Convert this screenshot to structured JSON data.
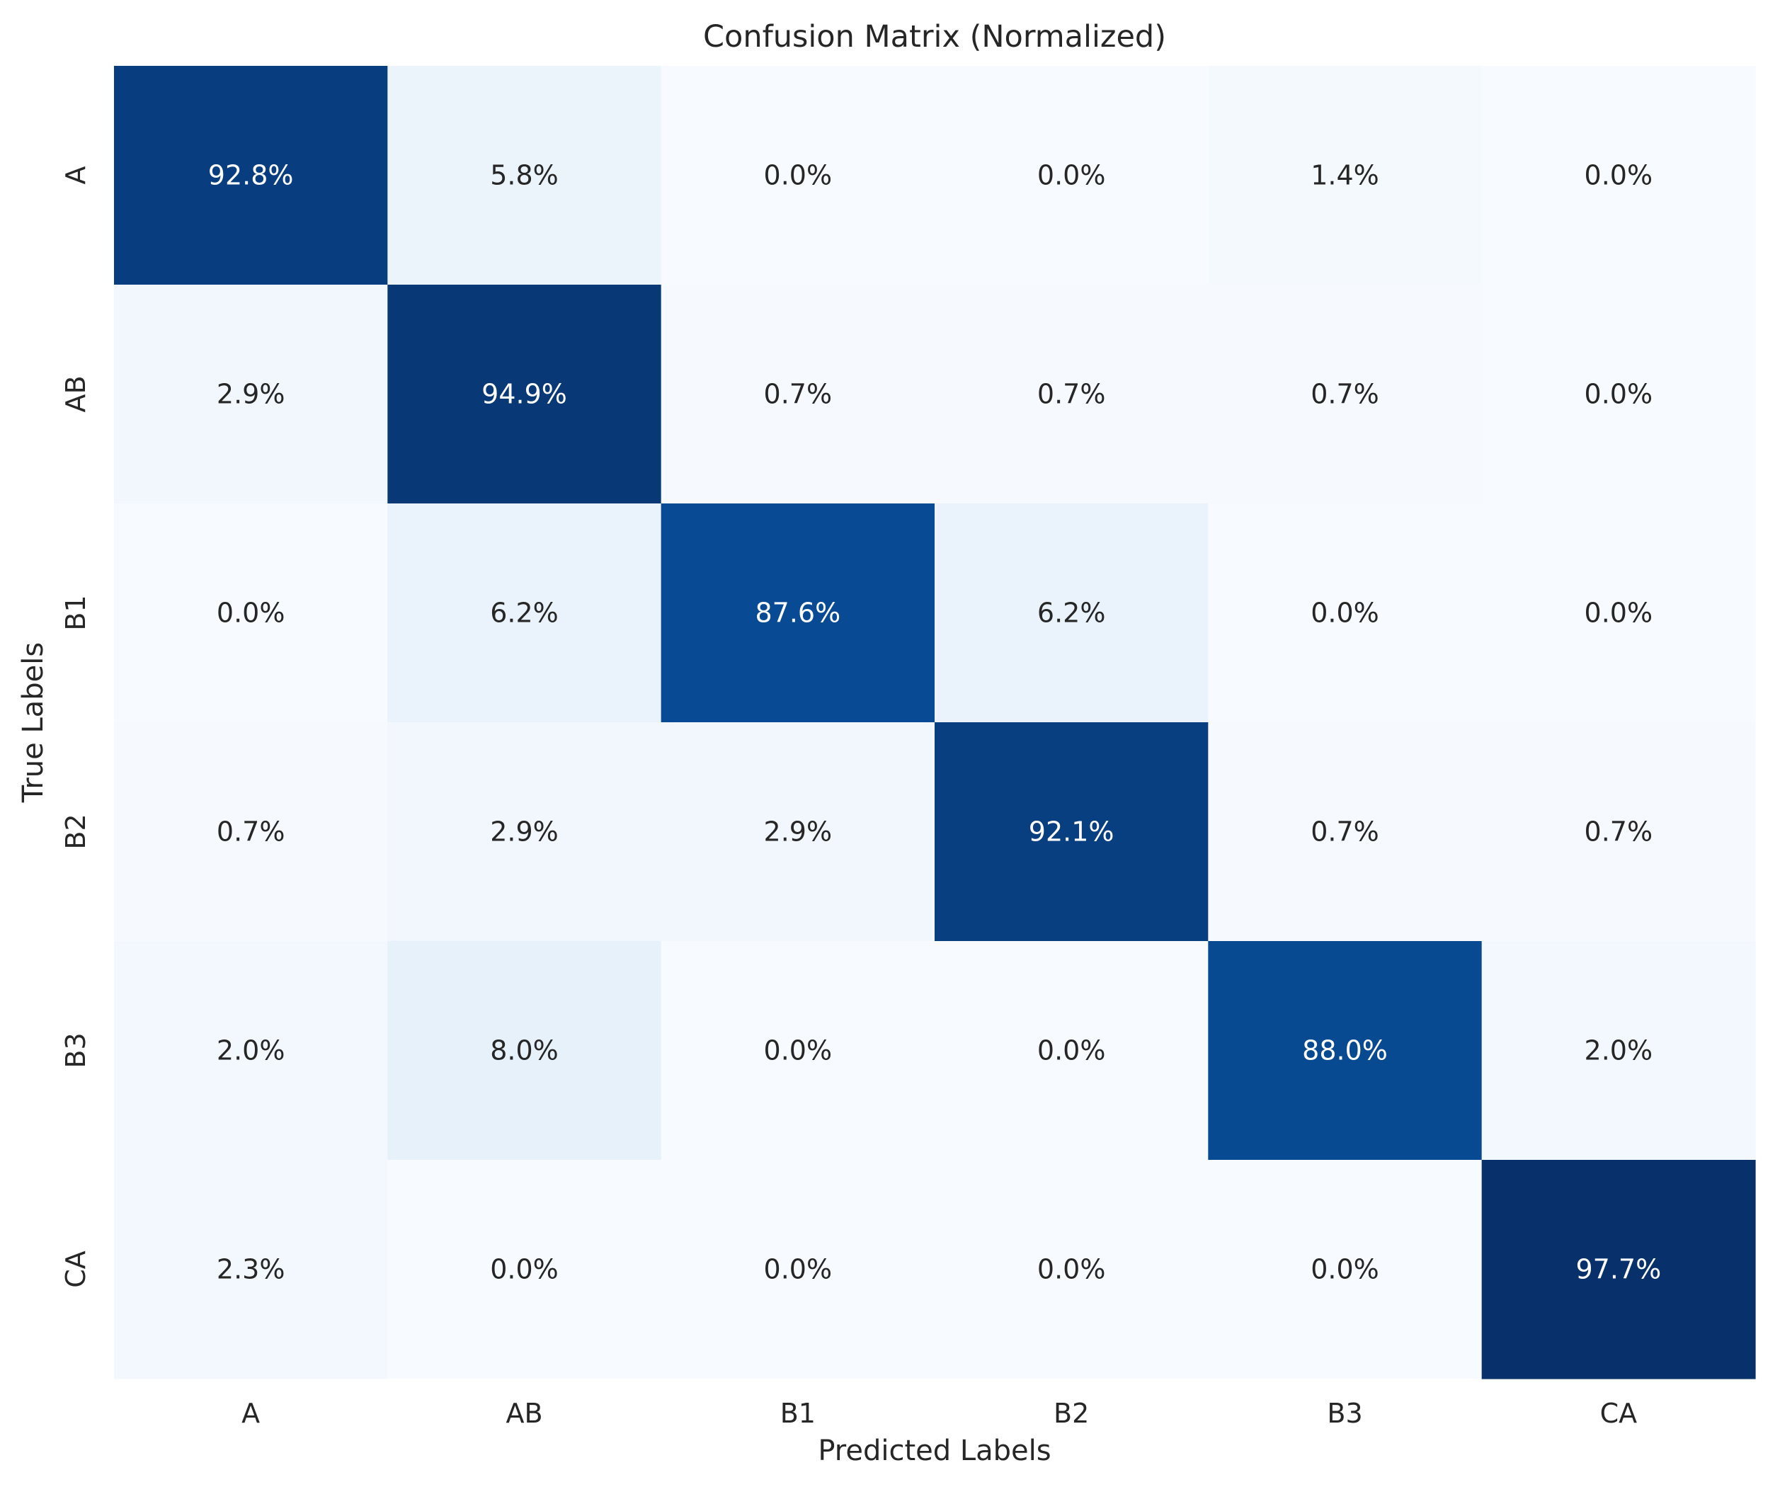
{
  "chart_data": {
    "type": "heatmap",
    "title": "Confusion Matrix (Normalized)",
    "xlabel": "Predicted Labels",
    "ylabel": "True Labels",
    "x_categories": [
      "A",
      "AB",
      "B1",
      "B2",
      "B3",
      "CA"
    ],
    "y_categories": [
      "A",
      "AB",
      "B1",
      "B2",
      "B3",
      "CA"
    ],
    "values": [
      [
        92.8,
        5.8,
        0.0,
        0.0,
        1.4,
        0.0
      ],
      [
        2.9,
        94.9,
        0.7,
        0.7,
        0.7,
        0.0
      ],
      [
        0.0,
        6.2,
        87.6,
        6.2,
        0.0,
        0.0
      ],
      [
        0.7,
        2.9,
        2.9,
        92.1,
        0.7,
        0.7
      ],
      [
        2.0,
        8.0,
        0.0,
        0.0,
        88.0,
        2.0
      ],
      [
        2.3,
        0.0,
        0.0,
        0.0,
        0.0,
        97.7
      ]
    ],
    "value_format": "percent",
    "colormap": "Blues",
    "colorbar": false,
    "grid": false,
    "colors": {
      "low": "#f7fbff",
      "mid_light": "#c6dbef",
      "mid": "#6baed6",
      "mid_dark": "#2171b5",
      "high": "#08306b",
      "text_dark": "#262626",
      "text_light": "#ffffff"
    }
  }
}
